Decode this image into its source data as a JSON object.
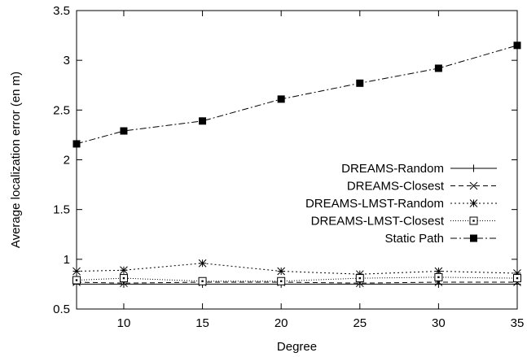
{
  "chart_data": {
    "type": "line",
    "xlabel": "Degree",
    "ylabel": "Average localization error (en m)",
    "xlim": [
      7,
      35
    ],
    "ylim": [
      0.5,
      3.5
    ],
    "xticks": [
      10,
      15,
      20,
      25,
      30,
      35
    ],
    "yticks": [
      0.5,
      1,
      1.5,
      2,
      2.5,
      3,
      3.5
    ],
    "xtick_labels": [
      "10",
      "15",
      "20",
      "25",
      "30",
      "35"
    ],
    "ytick_labels": [
      "0.5",
      "1",
      "1.5",
      "2",
      "2.5",
      "3",
      "3.5"
    ],
    "grid": false,
    "legend_position": "center-right",
    "x": [
      7,
      10,
      15,
      20,
      25,
      30,
      35
    ],
    "series": [
      {
        "name": "DREAMS-Random",
        "marker": "plus",
        "dash": "solid",
        "color": "#000000",
        "values": [
          0.75,
          0.75,
          0.75,
          0.75,
          0.75,
          0.75,
          0.75
        ]
      },
      {
        "name": "DREAMS-Closest",
        "marker": "cross",
        "dash": "dashed",
        "color": "#000000",
        "values": [
          0.77,
          0.76,
          0.77,
          0.77,
          0.76,
          0.77,
          0.77
        ]
      },
      {
        "name": "DREAMS-LMST-Random",
        "marker": "star",
        "dash": "dotted",
        "color": "#000000",
        "values": [
          0.88,
          0.89,
          0.96,
          0.88,
          0.85,
          0.88,
          0.86
        ]
      },
      {
        "name": "DREAMS-LMST-Closest",
        "marker": "dotted-square",
        "dash": "finedot",
        "color": "#000000",
        "values": [
          0.79,
          0.81,
          0.78,
          0.78,
          0.81,
          0.82,
          0.81
        ]
      },
      {
        "name": "Static Path",
        "marker": "filled-square",
        "dash": "dashdot",
        "color": "#000000",
        "values": [
          2.16,
          2.29,
          2.39,
          2.61,
          2.77,
          2.92,
          3.15
        ]
      }
    ]
  }
}
